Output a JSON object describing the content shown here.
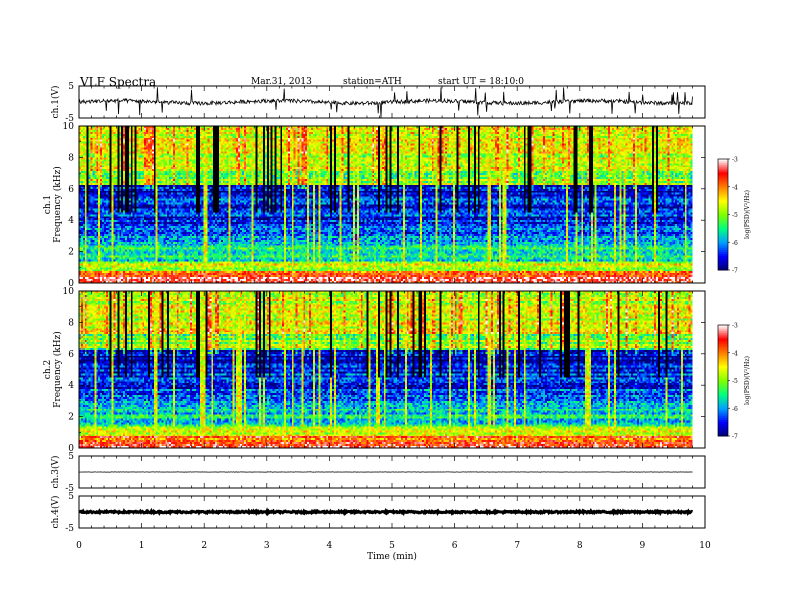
{
  "header": {
    "title": "VLF  Spectra",
    "date": "Mar.31, 2013",
    "station": "station=ATH",
    "start": "start  UT =   18:10:0"
  },
  "chart_data": {
    "type": "heatmap",
    "xlabel": "Time  (min)",
    "xlim": [
      0,
      10
    ],
    "xticks": [
      0,
      1,
      2,
      3,
      4,
      5,
      6,
      7,
      8,
      9,
      10
    ],
    "data_end_min": 9.8,
    "panels": [
      {
        "id": "ch1-waveform",
        "kind": "line",
        "ylabel": "ch.1(V)",
        "ylim": [
          -5,
          5
        ],
        "yticks": [
          "5",
          "-5"
        ],
        "baseline": 0,
        "noise_amplitude": 0.6
      },
      {
        "id": "ch1-spectrogram",
        "kind": "spectrogram",
        "ylabel": "ch.1  Frequency  (kHz)",
        "ylim": [
          0,
          10
        ],
        "yticks": [
          "0",
          "2",
          "4",
          "6",
          "8",
          "10"
        ]
      },
      {
        "id": "ch2-spectrogram",
        "kind": "spectrogram",
        "ylabel": "ch.2  Frequency  (kHz)",
        "ylim": [
          0,
          10
        ],
        "yticks": [
          "0",
          "2",
          "4",
          "6",
          "8",
          "10"
        ]
      },
      {
        "id": "ch3-waveform",
        "kind": "line",
        "ylabel": "ch.3(V)",
        "ylim": [
          -5,
          5
        ],
        "yticks": [
          "5",
          "-5"
        ],
        "baseline": 0,
        "noise_amplitude": 0.05
      },
      {
        "id": "ch4-waveform",
        "kind": "line",
        "ylabel": "ch.4(V)",
        "ylim": [
          -5,
          5
        ],
        "yticks": [
          "5",
          "-5"
        ],
        "baseline": 0,
        "noise_amplitude": 0.25
      }
    ],
    "colorbar": {
      "label": "log(PSD)(V²/Hz)",
      "range": [
        -7,
        -3
      ],
      "ticks": [
        "-3",
        "-4",
        "-5",
        "-6",
        "-7"
      ],
      "colors": [
        "#000070",
        "#0000ff",
        "#00a0ff",
        "#00ff80",
        "#80ff00",
        "#ffff00",
        "#ff8000",
        "#ff0000",
        "#ffffff"
      ]
    },
    "spectrogram_bands": [
      {
        "f0": 0.0,
        "f1": 0.4,
        "level": -3.4
      },
      {
        "f0": 0.4,
        "f1": 0.8,
        "level": -3.9
      },
      {
        "f0": 0.8,
        "f1": 1.4,
        "level": -4.8
      },
      {
        "f0": 1.4,
        "f1": 2.6,
        "level": -5.6
      },
      {
        "f0": 2.6,
        "f1": 3.4,
        "level": -6.1
      },
      {
        "f0": 3.4,
        "f1": 5.4,
        "level": -6.4
      },
      {
        "f0": 5.4,
        "f1": 6.2,
        "level": -6.8
      },
      {
        "f0": 6.2,
        "f1": 7.2,
        "level": -5.1
      },
      {
        "f0": 7.2,
        "f1": 10.0,
        "level": -4.7
      }
    ]
  }
}
